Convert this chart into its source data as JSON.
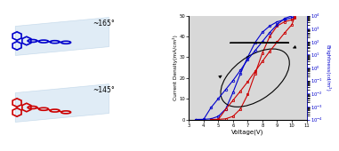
{
  "left_panel": {
    "blue_angle": "~165°",
    "red_angle": "~145°",
    "blue_color": "#0000cc",
    "red_color": "#cc0000",
    "plane_color": "#c8ddf0",
    "plane_edge": "#aac8e0"
  },
  "right_panel": {
    "xlabel": "Voltage(V)",
    "ylabel_left": "Current Density(mA/cm²)",
    "ylabel_right": "Brightness(cd/m²)",
    "xlim": [
      3,
      11
    ],
    "ylim_left": [
      0,
      50
    ],
    "blue_color": "#0000cc",
    "red_color": "#cc0000",
    "bg_color": "#d8d8d8"
  }
}
